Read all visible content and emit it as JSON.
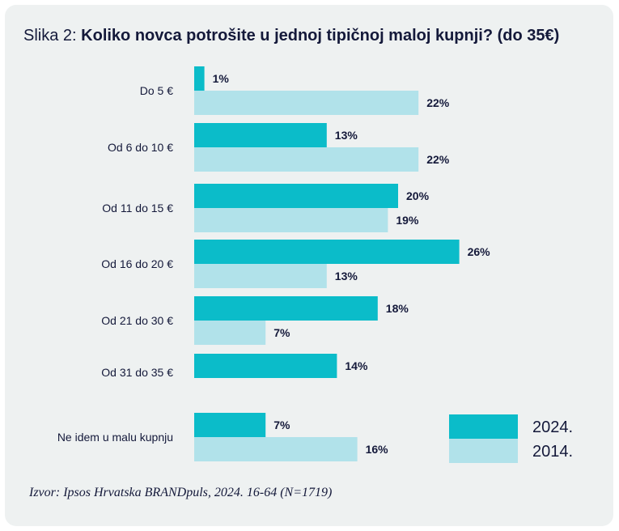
{
  "title_prefix": "Slika 2: ",
  "title": "Koliko novca potrošite u jednoj tipičnoj maloj kupnji? (do 35€)",
  "source": "Izvor: Ipsos Hrvatska BRANDpuls, 2024. 16-64 (N=1719)",
  "colors": {
    "s2024": "#0bbcc9",
    "s2014": "#b1e2ea",
    "text": "#14193a",
    "background": "#eef1f1"
  },
  "chart_data": {
    "type": "bar",
    "orientation": "horizontal",
    "title": "Koliko novca potrošite u jednoj tipičnoj maloj kupnji? (do 35€)",
    "categories": [
      "Do 5 €",
      "Od 6 do 10 €",
      "Od 11 do 15 €",
      "Od 16 do 20 €",
      "Od 21 do 30 €",
      "Od 31 do 35 €",
      "Ne idem u malu kupnju"
    ],
    "series": [
      {
        "name": "2024.",
        "values": [
          1,
          13,
          20,
          26,
          18,
          14,
          7
        ],
        "labels": [
          "1%",
          "13%",
          "20%",
          "26%",
          "18%",
          "14%",
          "7%"
        ]
      },
      {
        "name": "2014.",
        "values": [
          22,
          22,
          19,
          13,
          7,
          null,
          16
        ],
        "labels": [
          "22%",
          "22%",
          "19%",
          "13%",
          "7%",
          "",
          "16%"
        ]
      }
    ],
    "unit": "%",
    "grid": false,
    "legend": "bottom-right"
  }
}
